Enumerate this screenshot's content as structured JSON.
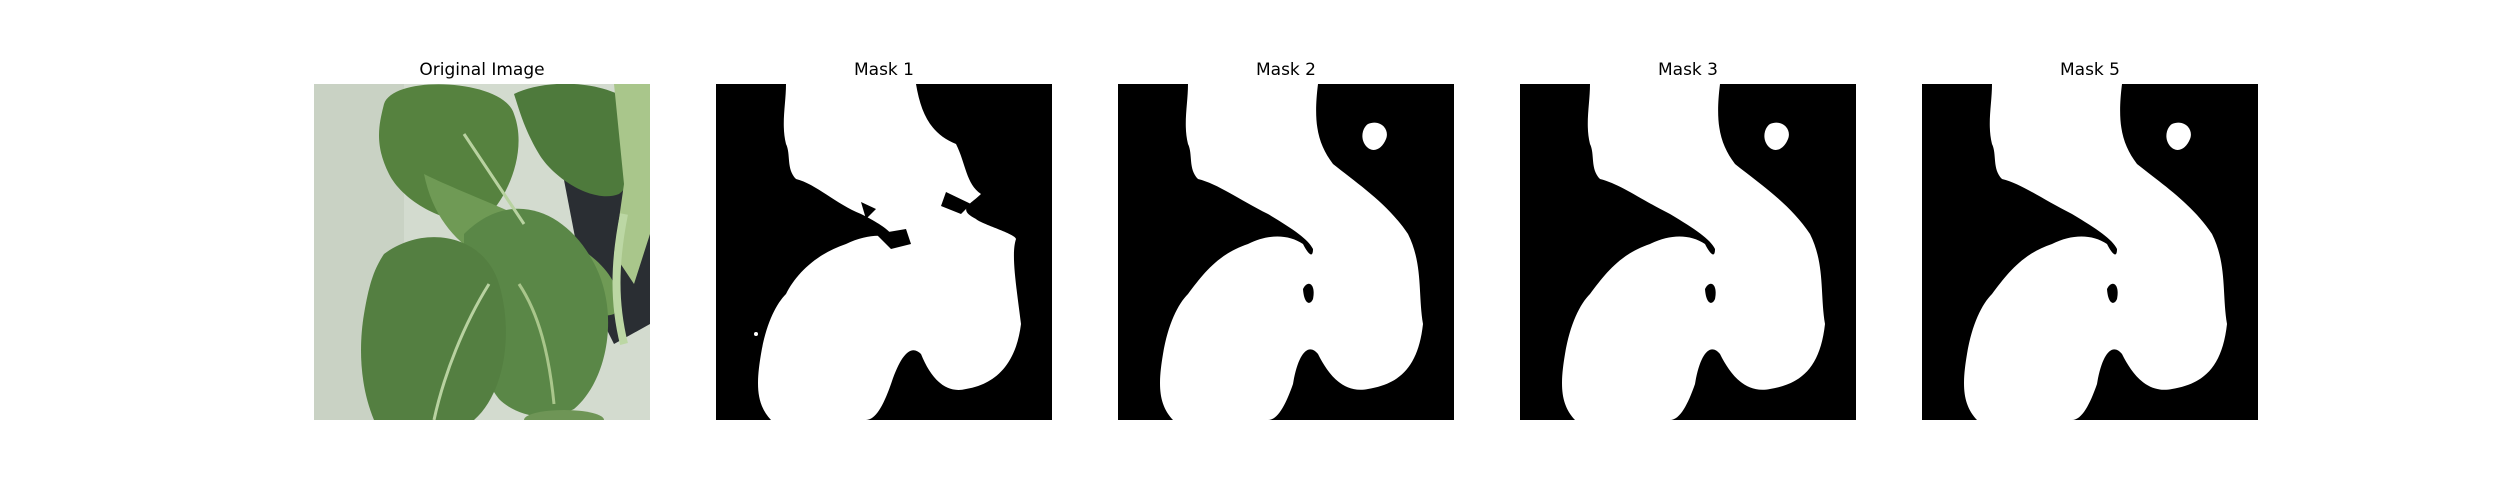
{
  "figure": {
    "panels": [
      {
        "title": "Original Image",
        "kind": "photo"
      },
      {
        "title": "Mask 1",
        "kind": "mask"
      },
      {
        "title": "Mask 2",
        "kind": "mask"
      },
      {
        "title": "Mask 3",
        "kind": "mask"
      },
      {
        "title": "Mask 5",
        "kind": "mask"
      }
    ]
  },
  "colors": {
    "mask_background": "#000000",
    "mask_foreground": "#ffffff",
    "leaf_dark": "#4f7a3e",
    "leaf_mid": "#6e9556",
    "leaf_light": "#9dbb86",
    "photo_background": "#d3dbcf"
  }
}
